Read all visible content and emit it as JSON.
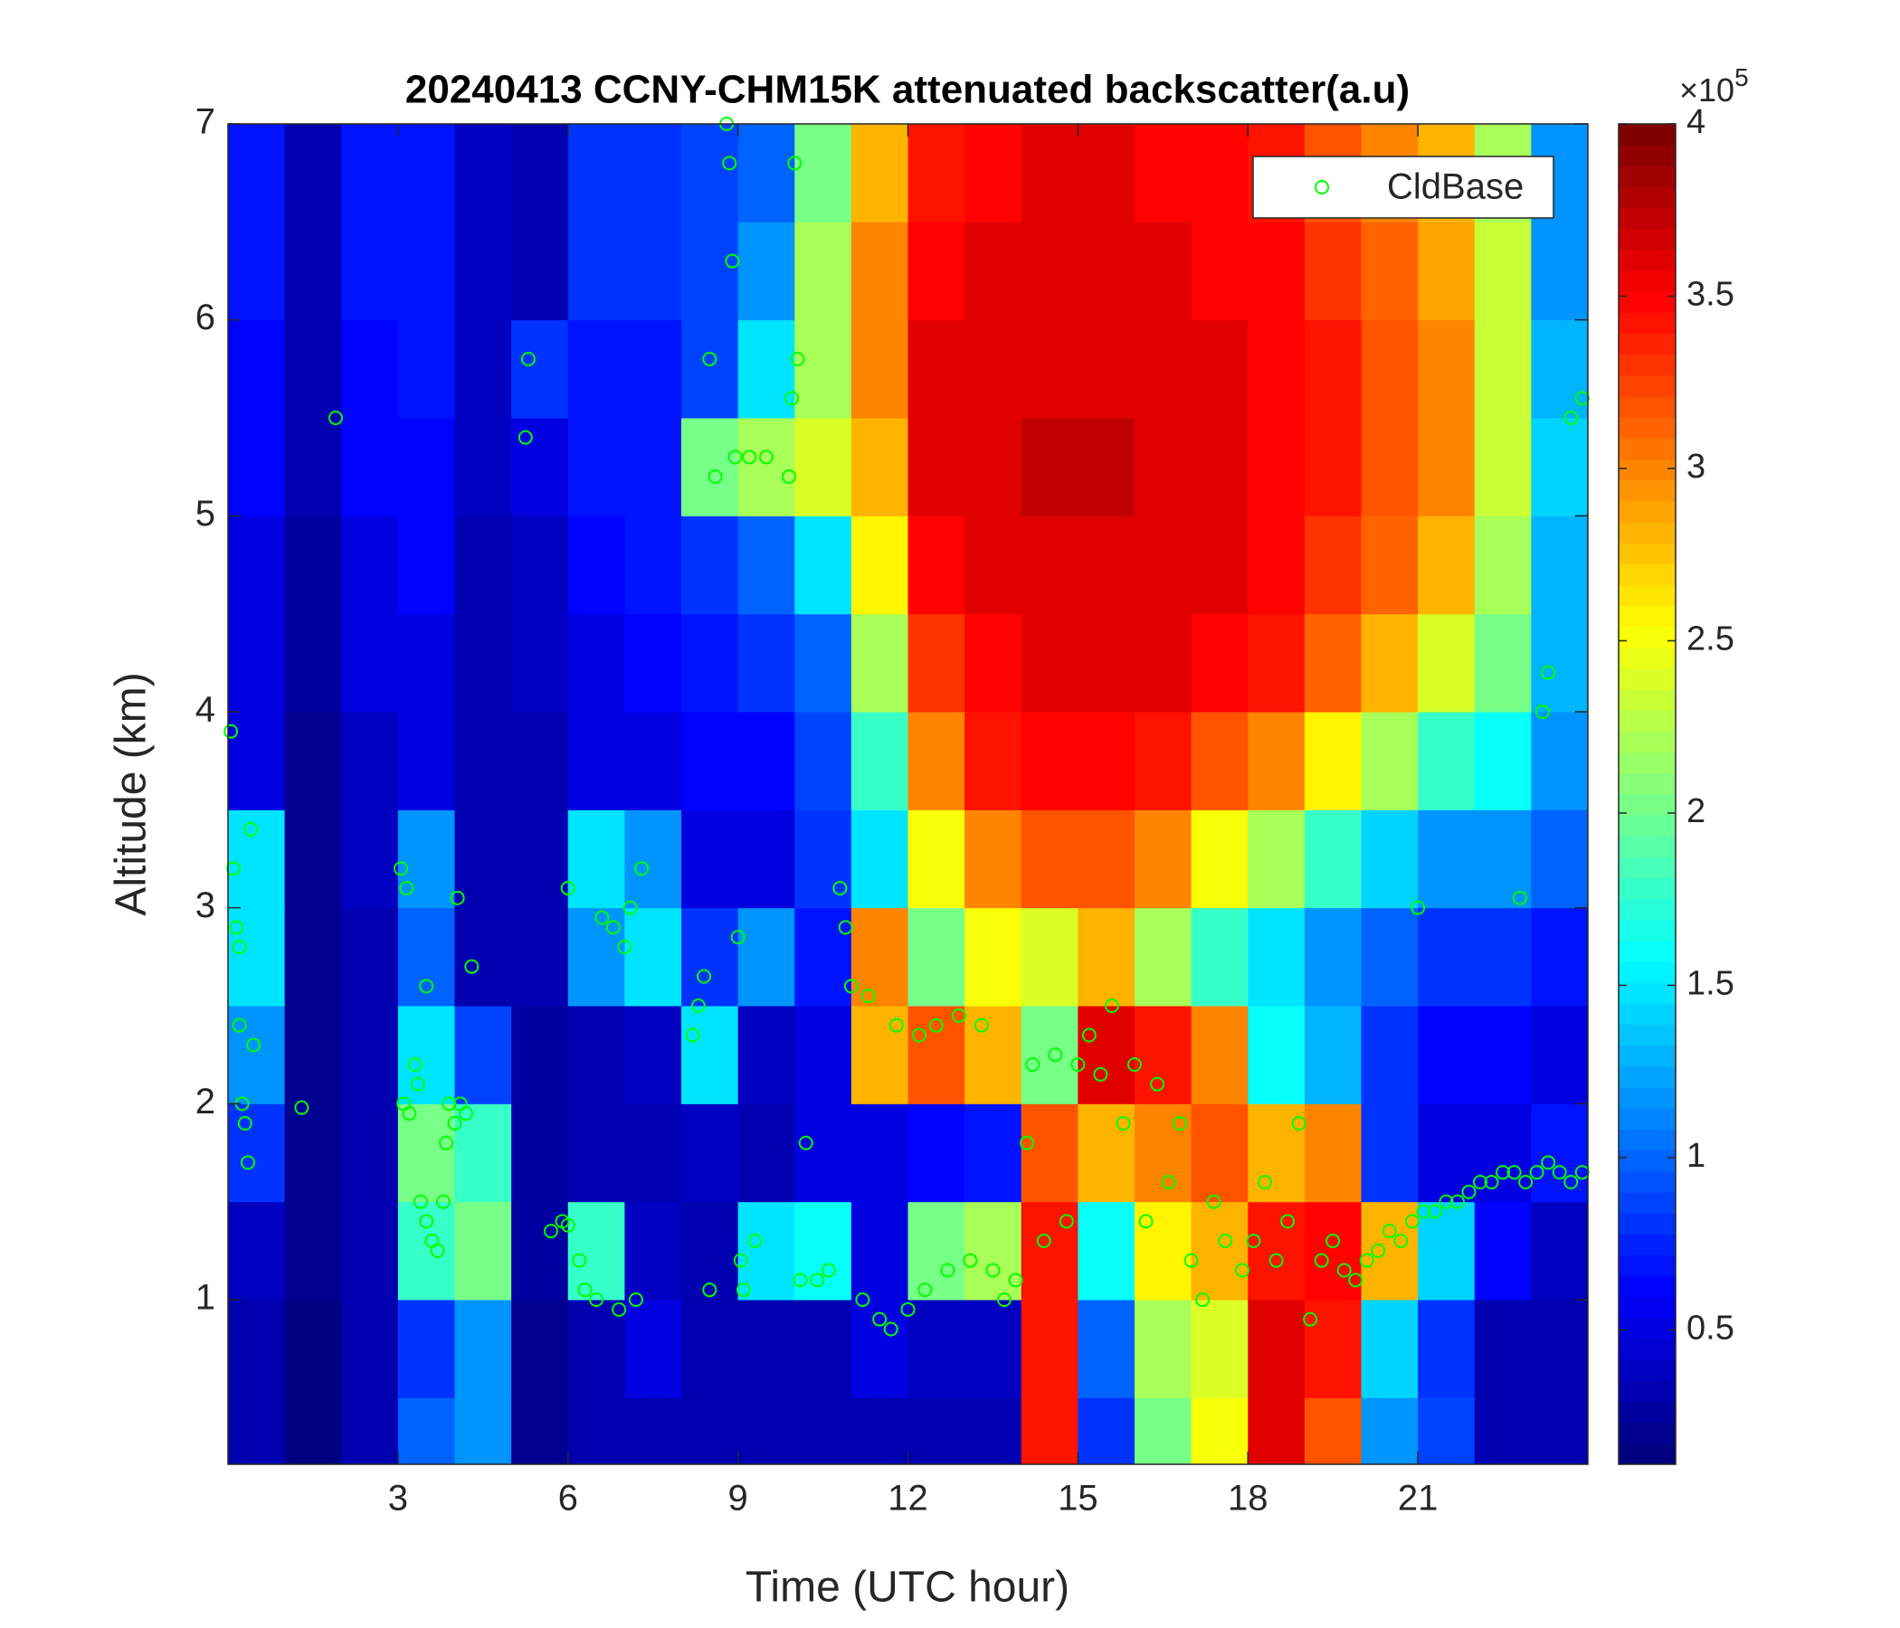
{
  "chart_data": {
    "type": "heatmap",
    "title": "20240413 CCNY-CHM15K attenuated backscatter(a.u)",
    "xlabel": "Time (UTC hour)",
    "ylabel": "Altitude (km)",
    "xlim": [
      0,
      24
    ],
    "ylim": [
      0.16,
      7
    ],
    "xticks": [
      3,
      6,
      9,
      12,
      15,
      18,
      21
    ],
    "yticks": [
      1,
      2,
      3,
      4,
      5,
      6,
      7
    ],
    "colormap": "jet",
    "clim": [
      0.11,
      4
    ],
    "cticks": [
      0.5,
      1,
      1.5,
      2,
      2.5,
      3,
      3.5,
      4
    ],
    "cscale_base": "×10",
    "cscale_exponent": "5",
    "xbins": [
      0,
      1,
      2,
      3,
      4,
      5,
      6,
      7,
      8,
      9,
      10,
      11,
      12,
      13,
      14,
      15,
      16,
      17,
      18,
      19,
      20,
      21,
      22,
      23,
      24
    ],
    "ybins": [
      0.16,
      0.5,
      1,
      1.5,
      2,
      2.5,
      3,
      3.5,
      4,
      4.5,
      5,
      5.5,
      6,
      6.5,
      7
    ],
    "z": [
      [
        0.3,
        0.15,
        0.3,
        1.0,
        1.2,
        0.2,
        0.3,
        0.3,
        0.3,
        0.3,
        0.3,
        0.3,
        0.3,
        0.3,
        3.4,
        0.8,
        2.0,
        2.5,
        3.6,
        3.2,
        1.2,
        0.9,
        0.3,
        0.3
      ],
      [
        0.3,
        0.15,
        0.3,
        0.8,
        1.2,
        0.2,
        0.3,
        0.5,
        0.3,
        0.3,
        0.3,
        0.5,
        0.4,
        0.4,
        3.4,
        1.0,
        2.2,
        2.4,
        3.6,
        3.4,
        1.4,
        0.8,
        0.3,
        0.3
      ],
      [
        0.4,
        0.2,
        0.3,
        1.8,
        2.0,
        0.25,
        1.8,
        0.4,
        0.3,
        1.5,
        1.6,
        0.5,
        2.0,
        2.2,
        3.4,
        1.6,
        2.6,
        2.8,
        3.4,
        3.5,
        2.8,
        1.4,
        0.6,
        0.4
      ],
      [
        0.8,
        0.2,
        0.3,
        2.0,
        1.8,
        0.25,
        0.3,
        0.3,
        0.4,
        0.3,
        0.5,
        0.5,
        0.6,
        0.7,
        3.2,
        2.8,
        3.0,
        3.2,
        2.8,
        3.0,
        0.8,
        0.5,
        0.5,
        0.7
      ],
      [
        1.2,
        0.2,
        0.3,
        1.5,
        0.9,
        0.25,
        0.3,
        0.4,
        1.5,
        0.4,
        0.5,
        2.8,
        3.2,
        2.8,
        2.0,
        3.6,
        3.4,
        3.0,
        1.6,
        1.3,
        0.8,
        0.6,
        0.6,
        0.5
      ],
      [
        1.5,
        0.2,
        0.35,
        1.0,
        0.3,
        0.3,
        1.2,
        1.5,
        0.8,
        1.2,
        0.7,
        3.0,
        2.0,
        2.5,
        2.4,
        2.8,
        2.2,
        1.8,
        1.5,
        1.2,
        1.0,
        0.8,
        0.8,
        0.7
      ],
      [
        1.5,
        0.2,
        0.4,
        1.2,
        0.3,
        0.3,
        1.5,
        1.2,
        0.5,
        0.5,
        0.8,
        1.5,
        2.5,
        3.0,
        3.2,
        3.2,
        3.0,
        2.5,
        2.2,
        1.8,
        1.4,
        1.2,
        1.2,
        1.0
      ],
      [
        0.5,
        0.2,
        0.4,
        0.5,
        0.3,
        0.35,
        0.5,
        0.5,
        0.6,
        0.6,
        0.9,
        1.8,
        3.0,
        3.4,
        3.5,
        3.5,
        3.4,
        3.2,
        3.0,
        2.6,
        2.2,
        1.8,
        1.6,
        1.2
      ],
      [
        0.5,
        0.25,
        0.5,
        0.5,
        0.35,
        0.4,
        0.5,
        0.6,
        0.7,
        0.8,
        1.0,
        2.2,
        3.3,
        3.5,
        3.6,
        3.6,
        3.6,
        3.5,
        3.4,
        3.1,
        2.8,
        2.4,
        2.0,
        1.3
      ],
      [
        0.5,
        0.25,
        0.5,
        0.6,
        0.35,
        0.4,
        0.6,
        0.7,
        0.8,
        1.0,
        1.5,
        2.6,
        3.5,
        3.6,
        3.6,
        3.6,
        3.6,
        3.6,
        3.5,
        3.3,
        3.1,
        2.8,
        2.2,
        1.3
      ],
      [
        0.6,
        0.3,
        0.6,
        0.6,
        0.4,
        0.5,
        0.7,
        0.7,
        2.0,
        2.2,
        2.4,
        2.8,
        3.6,
        3.6,
        3.7,
        3.7,
        3.6,
        3.6,
        3.5,
        3.4,
        3.2,
        3.0,
        2.3,
        1.4
      ],
      [
        0.6,
        0.3,
        0.6,
        0.7,
        0.4,
        0.8,
        0.7,
        0.7,
        0.9,
        1.5,
        2.2,
        3.0,
        3.6,
        3.6,
        3.6,
        3.6,
        3.6,
        3.6,
        3.5,
        3.4,
        3.2,
        3.0,
        2.3,
        1.3
      ],
      [
        0.7,
        0.3,
        0.7,
        0.7,
        0.4,
        0.3,
        0.8,
        0.8,
        0.9,
        1.2,
        2.2,
        3.0,
        3.5,
        3.6,
        3.6,
        3.6,
        3.6,
        3.5,
        3.5,
        3.3,
        3.1,
        2.9,
        2.3,
        1.2
      ],
      [
        0.7,
        0.3,
        0.7,
        0.7,
        0.4,
        0.3,
        0.8,
        0.8,
        0.9,
        1.0,
        2.0,
        2.8,
        3.4,
        3.5,
        3.6,
        3.6,
        3.5,
        3.5,
        3.4,
        3.2,
        3.0,
        2.8,
        2.2,
        1.2
      ]
    ],
    "overlay": {
      "type": "scatter",
      "name": "CldBase",
      "color": "#00ff00",
      "legend": "upper right",
      "x": [
        0.05,
        0.1,
        0.15,
        0.2,
        0.25,
        0.3,
        0.35,
        0.4,
        0.45,
        0.2,
        1.3,
        1.9,
        3.05,
        3.15,
        3.1,
        3.2,
        3.3,
        3.35,
        3.4,
        3.5,
        3.6,
        3.7,
        3.8,
        3.85,
        3.9,
        4.0,
        4.1,
        4.2,
        4.05,
        3.5,
        4.3,
        5.3,
        5.25,
        5.7,
        5.9,
        6.0,
        6.0,
        6.2,
        6.3,
        6.5,
        6.6,
        6.8,
        6.9,
        7.0,
        7.1,
        7.3,
        7.2,
        8.2,
        8.3,
        8.4,
        8.5,
        8.6,
        8.5,
        8.8,
        8.85,
        8.9,
        8.95,
        9.0,
        9.05,
        9.1,
        9.2,
        9.3,
        9.5,
        9.9,
        9.95,
        10.0,
        10.05,
        10.1,
        10.2,
        10.4,
        10.6,
        10.8,
        10.9,
        11.0,
        11.2,
        11.3,
        11.5,
        11.7,
        11.8,
        12.0,
        12.2,
        12.3,
        12.5,
        12.7,
        12.9,
        13.1,
        13.3,
        13.5,
        13.7,
        13.9,
        14.1,
        14.2,
        14.4,
        14.6,
        14.8,
        15.0,
        15.2,
        15.4,
        15.6,
        15.8,
        16.0,
        16.2,
        16.4,
        16.6,
        16.8,
        17.0,
        17.2,
        17.4,
        17.6,
        17.9,
        18.1,
        18.3,
        18.5,
        18.7,
        18.9,
        19.1,
        19.3,
        19.5,
        19.7,
        19.9,
        20.1,
        20.3,
        20.5,
        20.7,
        20.9,
        21.1,
        21.3,
        21.5,
        21.7,
        21.9,
        22.1,
        22.3,
        22.5,
        22.7,
        22.9,
        23.1,
        23.3,
        23.5,
        23.7,
        23.9,
        21.0,
        22.8,
        23.2,
        23.3,
        23.7,
        23.9
      ],
      "y": [
        3.9,
        3.2,
        2.9,
        2.8,
        2.0,
        1.9,
        1.7,
        3.4,
        2.3,
        2.4,
        1.98,
        5.5,
        3.2,
        3.1,
        2.0,
        1.95,
        2.2,
        2.1,
        1.5,
        1.4,
        1.3,
        1.25,
        1.5,
        1.8,
        2.0,
        1.9,
        2.0,
        1.95,
        3.05,
        2.6,
        2.7,
        5.8,
        5.4,
        1.35,
        1.4,
        1.38,
        3.1,
        1.2,
        1.05,
        1.0,
        2.95,
        2.9,
        0.95,
        2.8,
        3.0,
        3.2,
        1.0,
        2.35,
        2.5,
        2.65,
        5.8,
        5.2,
        1.05,
        7.0,
        6.8,
        6.3,
        5.3,
        2.85,
        1.2,
        1.05,
        5.3,
        1.3,
        5.3,
        5.2,
        5.6,
        6.8,
        5.8,
        1.1,
        1.8,
        1.1,
        1.15,
        3.1,
        2.9,
        2.6,
        1.0,
        2.55,
        0.9,
        0.85,
        2.4,
        0.95,
        2.35,
        1.05,
        2.4,
        1.15,
        2.45,
        1.2,
        2.4,
        1.15,
        1.0,
        1.1,
        1.8,
        2.2,
        1.3,
        2.25,
        1.4,
        2.2,
        2.35,
        2.15,
        2.5,
        1.9,
        2.2,
        1.4,
        2.1,
        1.6,
        1.9,
        1.2,
        1.0,
        1.5,
        1.3,
        1.15,
        1.3,
        1.6,
        1.2,
        1.4,
        1.9,
        0.9,
        1.2,
        1.3,
        1.15,
        1.1,
        1.2,
        1.25,
        1.35,
        1.3,
        1.4,
        1.45,
        1.45,
        1.5,
        1.5,
        1.55,
        1.6,
        1.6,
        1.65,
        1.65,
        1.6,
        1.65,
        1.7,
        1.65,
        1.6,
        1.65,
        3.0,
        3.05,
        4.0,
        4.2,
        5.5,
        5.6
      ]
    }
  }
}
